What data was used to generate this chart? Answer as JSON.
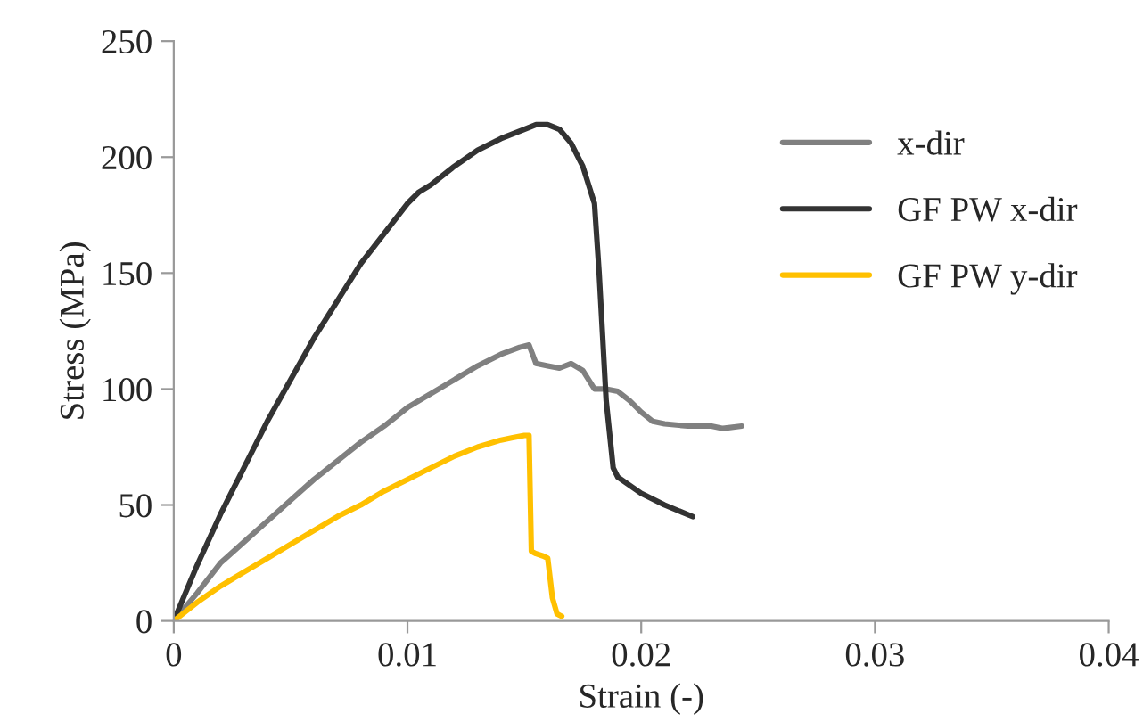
{
  "chart_data": {
    "type": "line",
    "xlabel": "Strain (-)",
    "ylabel": "Stress (MPa)",
    "xlim": [
      0,
      0.04
    ],
    "xticks": [
      0,
      0.01,
      0.02,
      0.03,
      0.04
    ],
    "ylim": [
      0,
      250
    ],
    "yticks": [
      0,
      50,
      100,
      150,
      200,
      250
    ],
    "grid": false,
    "legend": "top right",
    "marker": "none",
    "line_style": "solid",
    "series": [
      {
        "name": "x-dir",
        "color": "#808080",
        "x": [
          0,
          0.001,
          0.002,
          0.003,
          0.004,
          0.005,
          0.006,
          0.007,
          0.008,
          0.009,
          0.01,
          0.011,
          0.012,
          0.013,
          0.014,
          0.0148,
          0.0152,
          0.0155,
          0.016,
          0.0165,
          0.017,
          0.0175,
          0.018,
          0.0185,
          0.019,
          0.0195,
          0.02,
          0.0205,
          0.021,
          0.022,
          0.023,
          0.0235,
          0.0243
        ],
        "values": [
          0,
          12,
          25,
          34,
          43,
          52,
          61,
          69,
          77,
          84,
          92,
          98,
          104,
          110,
          115,
          118,
          119,
          111,
          110,
          109,
          111,
          108,
          100,
          100,
          99,
          95,
          90,
          86,
          85,
          84,
          84,
          83,
          84
        ]
      },
      {
        "name": "GF PW x-dir",
        "color": "#333333",
        "x": [
          0,
          0.001,
          0.002,
          0.003,
          0.004,
          0.005,
          0.006,
          0.007,
          0.008,
          0.009,
          0.01,
          0.0105,
          0.011,
          0.012,
          0.013,
          0.014,
          0.015,
          0.0155,
          0.016,
          0.0165,
          0.017,
          0.0175,
          0.018,
          0.0182,
          0.0185,
          0.0188,
          0.019,
          0.02,
          0.021,
          0.0222
        ],
        "values": [
          0,
          24,
          46,
          66,
          86,
          104,
          122,
          138,
          154,
          167,
          180,
          185,
          188,
          196,
          203,
          208,
          212,
          214,
          214,
          212,
          206,
          196,
          180,
          150,
          95,
          66,
          62,
          55,
          50,
          45
        ]
      },
      {
        "name": "GF PW y-dir",
        "color": "#ffc000",
        "x": [
          0,
          0.001,
          0.002,
          0.003,
          0.004,
          0.005,
          0.006,
          0.007,
          0.008,
          0.009,
          0.01,
          0.011,
          0.012,
          0.013,
          0.014,
          0.0145,
          0.015,
          0.0152,
          0.0153,
          0.0155,
          0.0158,
          0.016,
          0.0162,
          0.0164,
          0.0166
        ],
        "values": [
          0,
          8,
          15,
          21,
          27,
          33,
          39,
          45,
          50,
          56,
          61,
          66,
          71,
          75,
          78,
          79,
          80,
          80,
          30,
          29,
          28,
          27,
          10,
          3,
          2
        ]
      }
    ]
  }
}
